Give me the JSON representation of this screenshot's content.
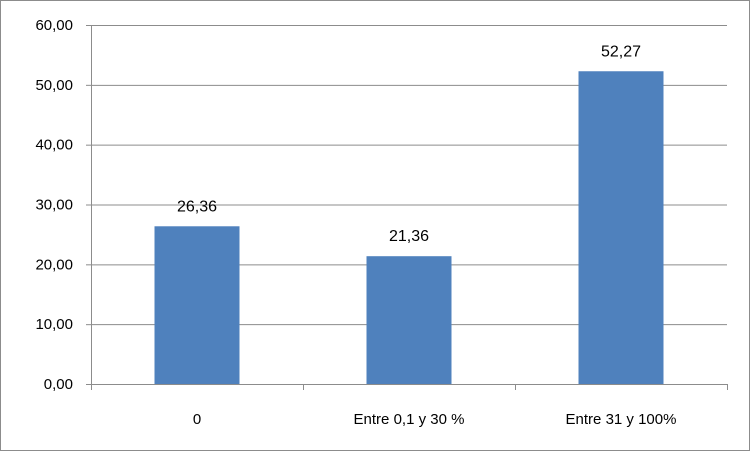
{
  "chart_data": {
    "type": "bar",
    "categories": [
      "0",
      "Entre 0,1 y 30 %",
      "Entre 31 y 100%"
    ],
    "values": [
      26.36,
      21.36,
      52.27
    ],
    "value_labels": [
      "26,36",
      "21,36",
      "52,27"
    ],
    "title": "",
    "xlabel": "",
    "ylabel": "",
    "ylim": [
      0,
      60
    ],
    "yticks": [
      0,
      10,
      20,
      30,
      40,
      50,
      60
    ],
    "ytick_labels": [
      "0,00",
      "10,00",
      "20,00",
      "30,00",
      "40,00",
      "50,00",
      "60,00"
    ],
    "grid": true,
    "legend": "none",
    "colors": {
      "bar": "#4F81BD",
      "grid": "#8c8c8c",
      "axis": "#8c8c8c"
    }
  }
}
